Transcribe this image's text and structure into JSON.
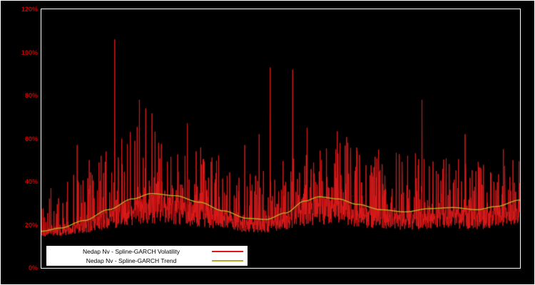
{
  "chart_data": {
    "type": "line",
    "title": "",
    "xlabel": "",
    "ylabel": "",
    "background": "#000000",
    "grid": false,
    "ylim": [
      0,
      120
    ],
    "ytick_values": [
      0,
      20,
      40,
      60,
      80,
      100,
      120
    ],
    "ytick_labels": [
      "0%",
      "20%",
      "40%",
      "60%",
      "80%",
      "100%",
      "120%"
    ],
    "x_axis_labels_visible": false,
    "series": [
      {
        "name": "Nedap Nv - Spline-GARCH Volatility",
        "color": "#dd1a1a",
        "style": "spiky-line"
      },
      {
        "name": "Nedap Nv - Spline-GARCH Trend",
        "color": "#b8aa28",
        "style": "smooth-line"
      }
    ],
    "trend_points": [
      [
        0.0,
        17.0
      ],
      [
        0.04,
        18.5
      ],
      [
        0.09,
        22.0
      ],
      [
        0.14,
        27.0
      ],
      [
        0.19,
        32.0
      ],
      [
        0.23,
        34.5
      ],
      [
        0.28,
        33.5
      ],
      [
        0.33,
        30.5
      ],
      [
        0.38,
        26.5
      ],
      [
        0.43,
        23.0
      ],
      [
        0.47,
        22.5
      ],
      [
        0.51,
        25.5
      ],
      [
        0.55,
        31.0
      ],
      [
        0.58,
        33.0
      ],
      [
        0.62,
        32.0
      ],
      [
        0.66,
        29.5
      ],
      [
        0.71,
        27.0
      ],
      [
        0.76,
        26.0
      ],
      [
        0.81,
        27.5
      ],
      [
        0.86,
        28.0
      ],
      [
        0.91,
        27.0
      ],
      [
        0.95,
        28.5
      ],
      [
        1.0,
        31.5
      ]
    ],
    "major_spikes": [
      [
        0.02,
        37
      ],
      [
        0.055,
        40
      ],
      [
        0.075,
        57
      ],
      [
        0.1,
        50
      ],
      [
        0.125,
        52
      ],
      [
        0.153,
        106
      ],
      [
        0.168,
        60
      ],
      [
        0.205,
        78
      ],
      [
        0.218,
        74
      ],
      [
        0.245,
        58
      ],
      [
        0.3,
        52
      ],
      [
        0.335,
        48
      ],
      [
        0.365,
        44
      ],
      [
        0.425,
        57
      ],
      [
        0.455,
        62
      ],
      [
        0.478,
        93
      ],
      [
        0.525,
        92
      ],
      [
        0.555,
        65
      ],
      [
        0.585,
        50
      ],
      [
        0.62,
        53
      ],
      [
        0.655,
        45
      ],
      [
        0.7,
        42
      ],
      [
        0.765,
        52
      ],
      [
        0.795,
        78
      ],
      [
        0.825,
        45
      ],
      [
        0.845,
        40
      ],
      [
        0.885,
        62
      ],
      [
        0.915,
        42
      ],
      [
        0.945,
        40
      ],
      [
        0.965,
        55
      ],
      [
        0.985,
        50
      ]
    ],
    "volatility_model": {
      "seed": 1337,
      "n_points": 1900,
      "floor": 13,
      "base_range": [
        0.35,
        1.0
      ],
      "spike_prob": 0.34,
      "spike_scale": 1.15,
      "max_value": 108
    }
  },
  "legend": {
    "items": [
      {
        "label": "Nedap Nv - Spline-GARCH Volatility",
        "color": "#dd1a1a"
      },
      {
        "label": "Nedap Nv - Spline-GARCH Trend",
        "color": "#b8aa28"
      }
    ]
  }
}
